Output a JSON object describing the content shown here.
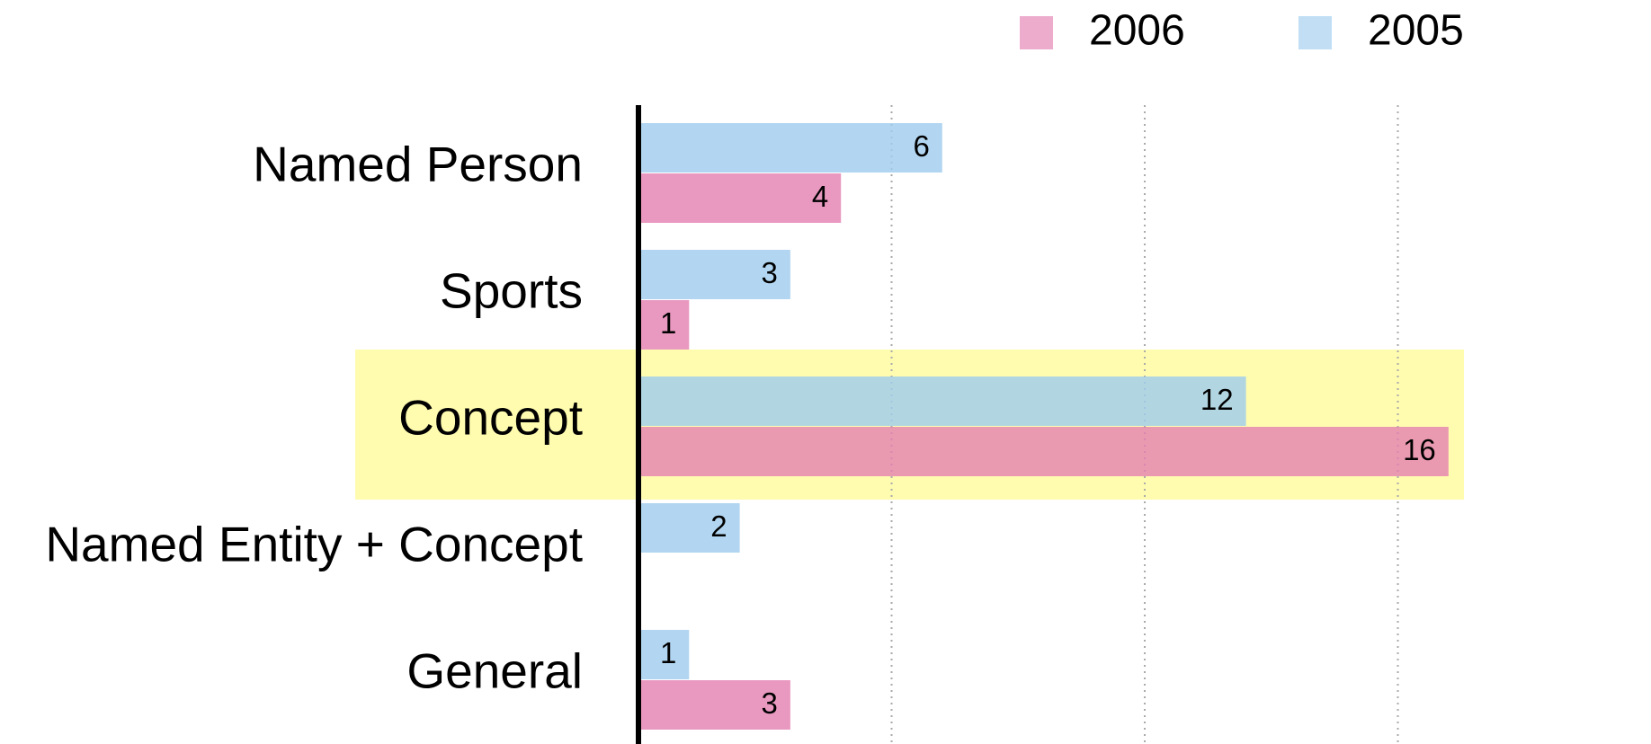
{
  "chart_data": {
    "type": "bar",
    "orientation": "horizontal",
    "categories": [
      "Named Person",
      "Sports",
      "Concept",
      "Named Entity + Concept",
      "General"
    ],
    "series": [
      {
        "name": "2005",
        "color": "#9fccee",
        "values": [
          6,
          3,
          12,
          2,
          1
        ]
      },
      {
        "name": "2006",
        "color": "#e37fb0",
        "values": [
          4,
          1,
          16,
          null,
          3
        ]
      }
    ],
    "legend_order": [
      1,
      0
    ],
    "highlight": "Concept",
    "highlight_color": "#fffcb0",
    "xlim": [
      0,
      20
    ],
    "xticks": [
      5,
      10,
      15
    ],
    "grid": true,
    "tick_labels": false,
    "data_labels": true
  }
}
